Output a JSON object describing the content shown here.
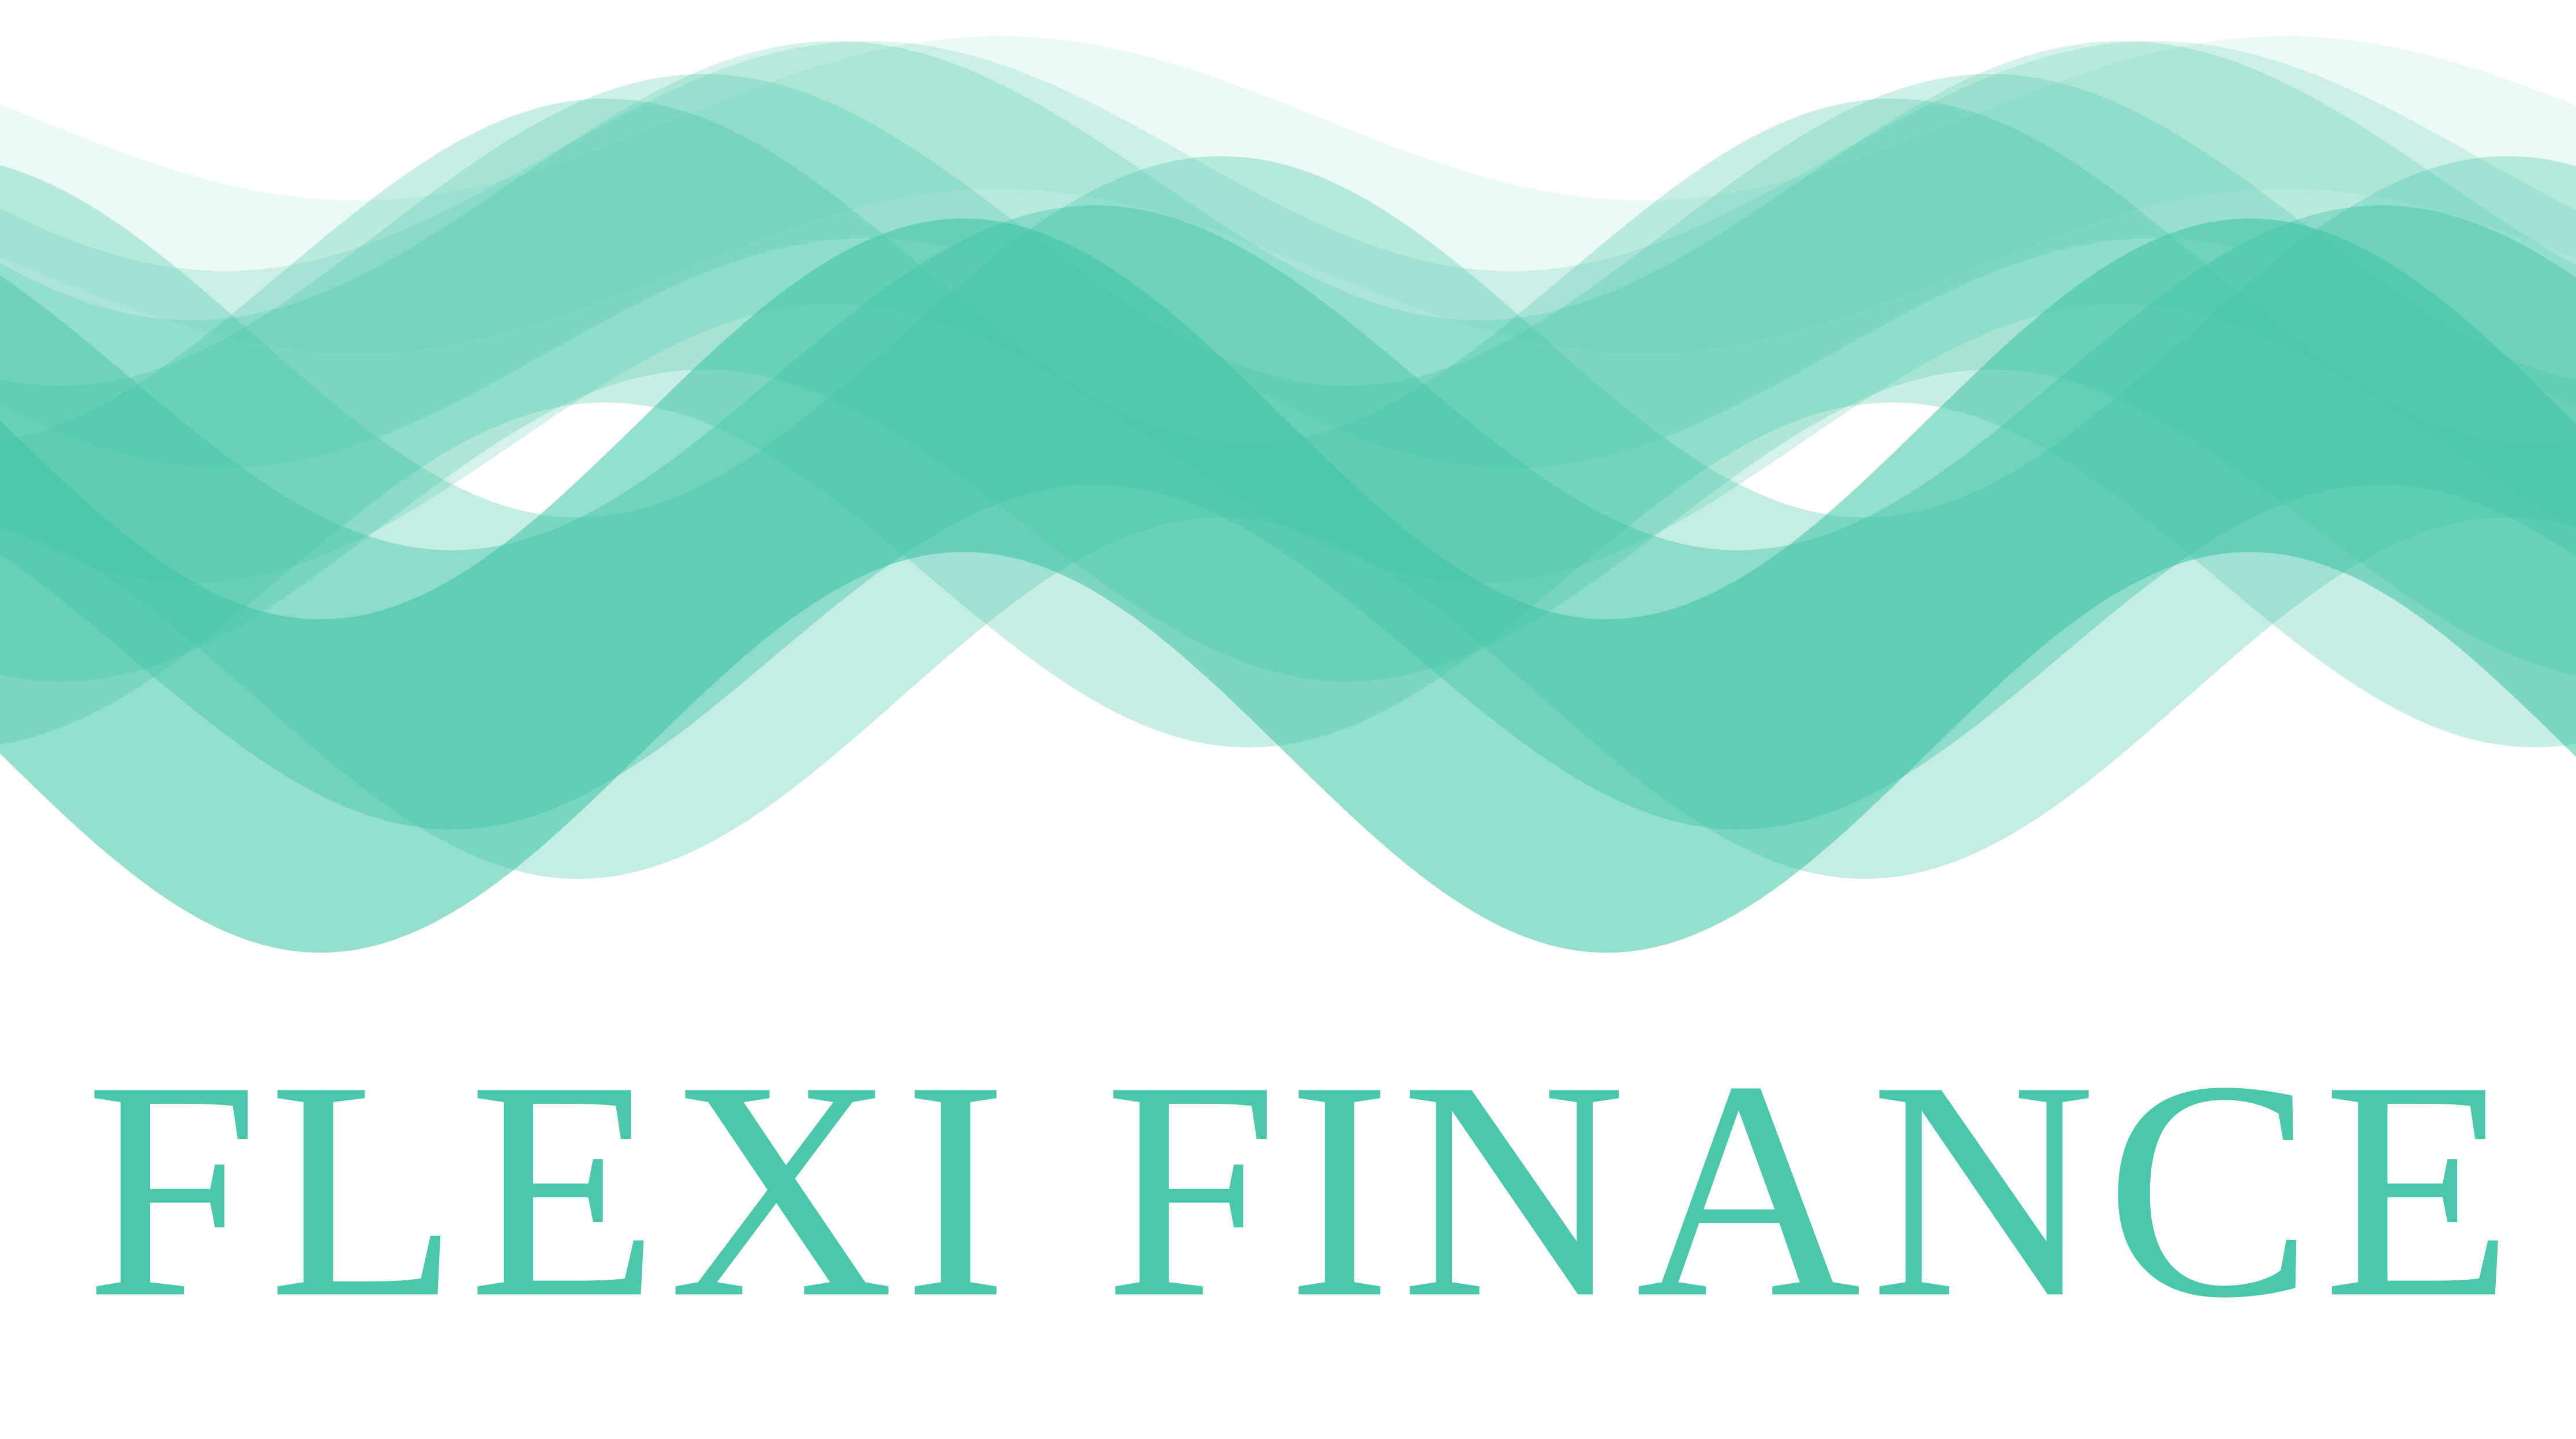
{
  "logo": {
    "text": "FLEXI FINANCE"
  }
}
